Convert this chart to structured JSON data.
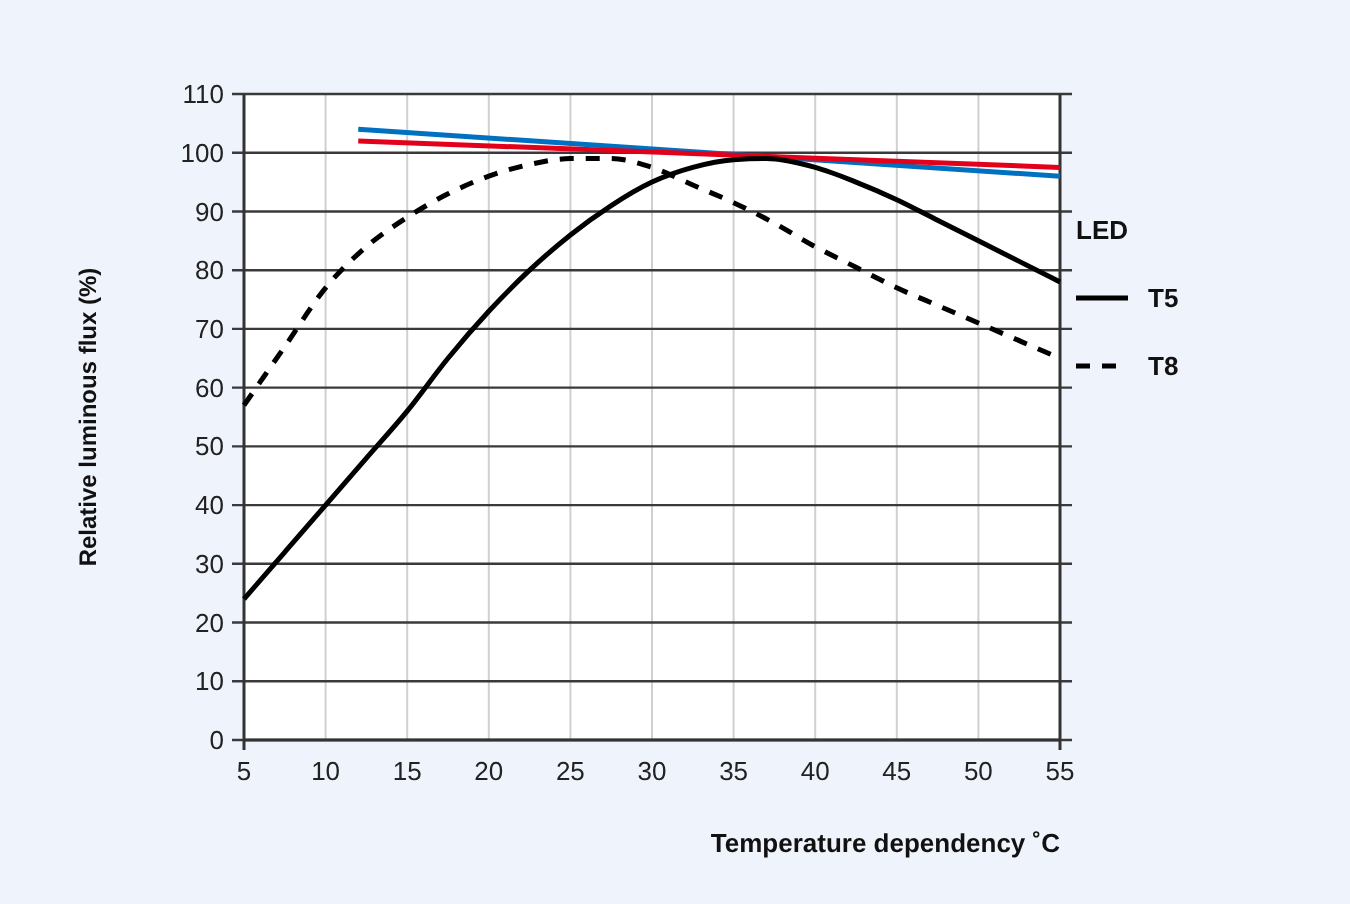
{
  "chart_data": {
    "type": "line",
    "xlabel": "Temperature dependency ˚C",
    "ylabel": "Relative luminous flux (%)",
    "xlim": [
      5,
      55
    ],
    "ylim": [
      0,
      110
    ],
    "xticks": [
      5,
      10,
      15,
      20,
      25,
      30,
      35,
      40,
      45,
      50,
      55
    ],
    "yticks": [
      0,
      10,
      20,
      30,
      40,
      50,
      60,
      70,
      80,
      90,
      100,
      110
    ],
    "grid": true,
    "legend": "right",
    "series": [
      {
        "name": "LED",
        "color": "#0070c0",
        "line_style": "solid",
        "x": [
          12,
          55
        ],
        "values": [
          104,
          96
        ]
      },
      {
        "color": "#e3001b",
        "line_style": "solid",
        "x": [
          12,
          55
        ],
        "values": [
          102,
          97.5
        ]
      },
      {
        "name": "T5",
        "color": "#000000",
        "line_style": "solid",
        "x": [
          5,
          7.5,
          10,
          12.5,
          15,
          17.5,
          20,
          22.5,
          25,
          27.5,
          30,
          32.5,
          35,
          37,
          40,
          42.5,
          45,
          47.5,
          50,
          52.5,
          55
        ],
        "values": [
          24,
          32,
          40,
          48,
          56,
          65,
          73,
          80,
          86,
          91,
          95,
          97.5,
          98.8,
          99,
          97.5,
          95,
          92,
          88.5,
          85,
          81.5,
          78
        ]
      },
      {
        "name": "T8",
        "color": "#000000",
        "line_style": "dashed",
        "x": [
          5,
          7.5,
          10,
          12.5,
          15,
          17.5,
          20,
          22.5,
          25,
          27.5,
          30,
          32.5,
          35,
          37.5,
          40,
          42.5,
          45,
          47.5,
          50,
          52.5,
          55
        ],
        "values": [
          57,
          67,
          77,
          84,
          89,
          93,
          96,
          98,
          99,
          99,
          97.5,
          94.5,
          91.5,
          88,
          84,
          80.5,
          77,
          74,
          71,
          68,
          65
        ]
      }
    ]
  }
}
